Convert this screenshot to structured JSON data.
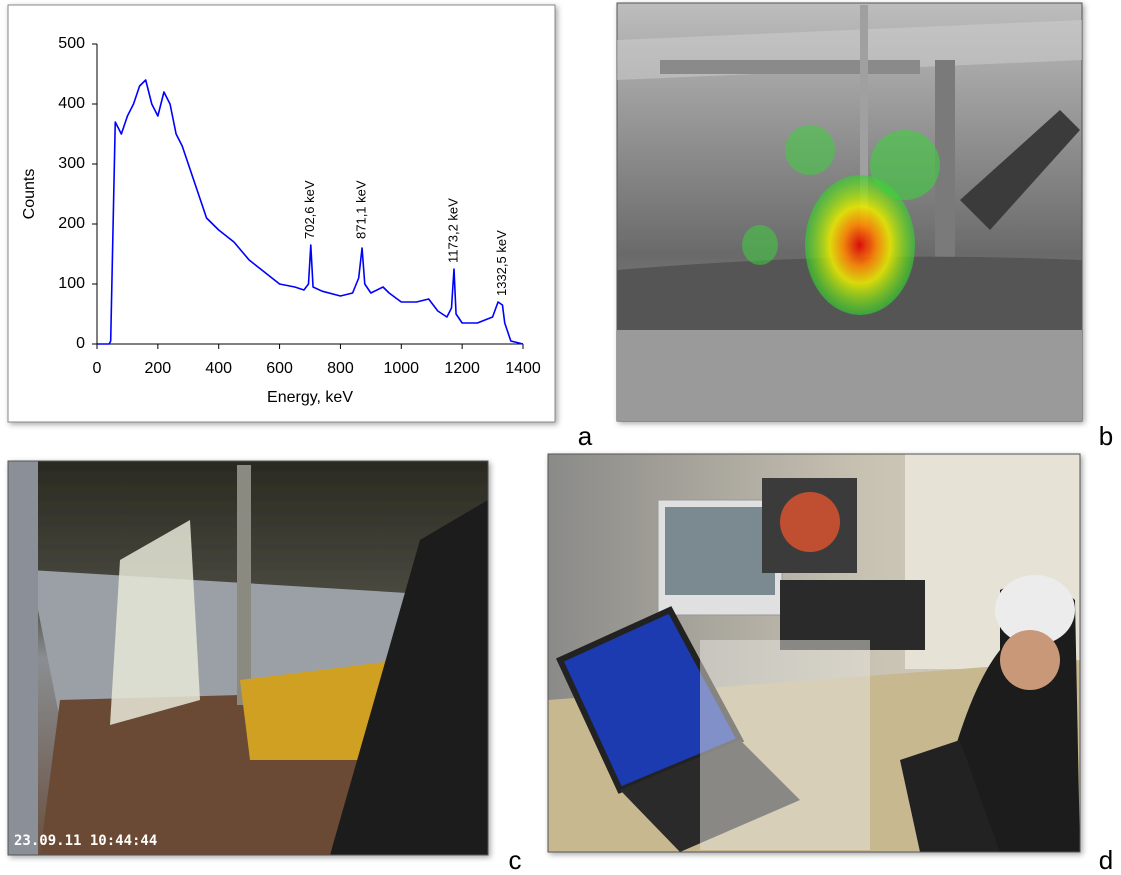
{
  "chart_data": {
    "type": "line",
    "x_label": "Energy, keV",
    "y_label": "Counts",
    "x": [
      0,
      40,
      45,
      55,
      60,
      80,
      100,
      120,
      140,
      160,
      180,
      200,
      220,
      240,
      260,
      280,
      300,
      320,
      340,
      360,
      400,
      450,
      500,
      550,
      600,
      650,
      680,
      695,
      702.6,
      710,
      740,
      800,
      840,
      860,
      871.1,
      880,
      900,
      940,
      960,
      1000,
      1050,
      1090,
      1120,
      1150,
      1165,
      1173.2,
      1180,
      1200,
      1250,
      1300,
      1318,
      1332.5,
      1340,
      1360,
      1400
    ],
    "values": [
      0,
      0,
      5,
      250,
      370,
      350,
      380,
      400,
      430,
      440,
      400,
      380,
      420,
      400,
      350,
      330,
      300,
      270,
      240,
      210,
      190,
      170,
      140,
      120,
      100,
      95,
      90,
      100,
      165,
      95,
      88,
      80,
      85,
      110,
      160,
      100,
      85,
      95,
      85,
      70,
      70,
      75,
      55,
      45,
      60,
      125,
      50,
      35,
      35,
      45,
      70,
      65,
      35,
      5,
      0
    ],
    "color": "#0000ff",
    "xlim": [
      0,
      1400
    ],
    "xticks": [
      0,
      200,
      400,
      600,
      800,
      1000,
      1200,
      1400
    ],
    "ylim": [
      0,
      500
    ],
    "yticks": [
      0,
      100,
      200,
      300,
      400,
      500
    ],
    "grid": false,
    "annotations": [
      {
        "text": "702,6 keV",
        "x": 702.6,
        "y": 175
      },
      {
        "text": "871,1 keV",
        "x": 871.1,
        "y": 175
      },
      {
        "text": "1173,2 keV",
        "x": 1173.2,
        "y": 135
      },
      {
        "text": "1332,5 keV",
        "x": 1332.5,
        "y": 80
      }
    ]
  },
  "panels": [
    "a",
    "b",
    "c",
    "d"
  ],
  "photo_c_timestamp": "23.09.11 10:44:44"
}
